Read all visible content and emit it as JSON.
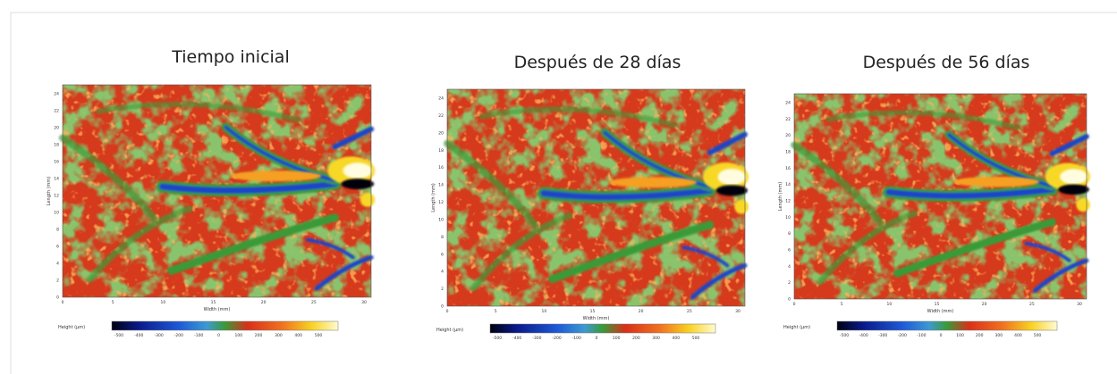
{
  "panels": [
    {
      "title": "Tiempo inicial",
      "x_label": "Width (mm)",
      "y_label": "Length (mm)",
      "colorbar_label": "Height (µm)",
      "xticks": [
        "0",
        "5",
        "10",
        "15",
        "20",
        "25",
        "30"
      ],
      "yticks": [
        "0",
        "2",
        "4",
        "6",
        "8",
        "10",
        "12",
        "14",
        "16",
        "18",
        "20",
        "22",
        "24"
      ],
      "colorbar_ticks": [
        "-500",
        "-400",
        "-300",
        "-200",
        "-100",
        "0",
        "100",
        "200",
        "300",
        "400",
        "500"
      ]
    },
    {
      "title": "Después de 28 días",
      "x_label": "Width (mm)",
      "y_label": "Length (mm)",
      "colorbar_label": "Height (µm)",
      "xticks": [
        "0",
        "5",
        "10",
        "15",
        "20",
        "25",
        "30"
      ],
      "yticks": [
        "0",
        "2",
        "4",
        "6",
        "8",
        "10",
        "12",
        "14",
        "16",
        "18",
        "20",
        "22",
        "24"
      ],
      "colorbar_ticks": [
        "-500",
        "-400",
        "-300",
        "-200",
        "-100",
        "0",
        "100",
        "200",
        "300",
        "400",
        "500"
      ]
    },
    {
      "title": "Después de 56 días",
      "x_label": "Width (mm)",
      "y_label": "Length (mm)",
      "colorbar_label": "Height (µm)",
      "xticks": [
        "0",
        "5",
        "10",
        "15",
        "20",
        "25",
        "30"
      ],
      "yticks": [
        "0",
        "2",
        "4",
        "6",
        "8",
        "10",
        "12",
        "14",
        "16",
        "18",
        "20",
        "22",
        "24"
      ],
      "colorbar_ticks": [
        "-500",
        "-400",
        "-300",
        "-200",
        "-100",
        "0",
        "100",
        "200",
        "300",
        "400",
        "500"
      ]
    }
  ]
}
